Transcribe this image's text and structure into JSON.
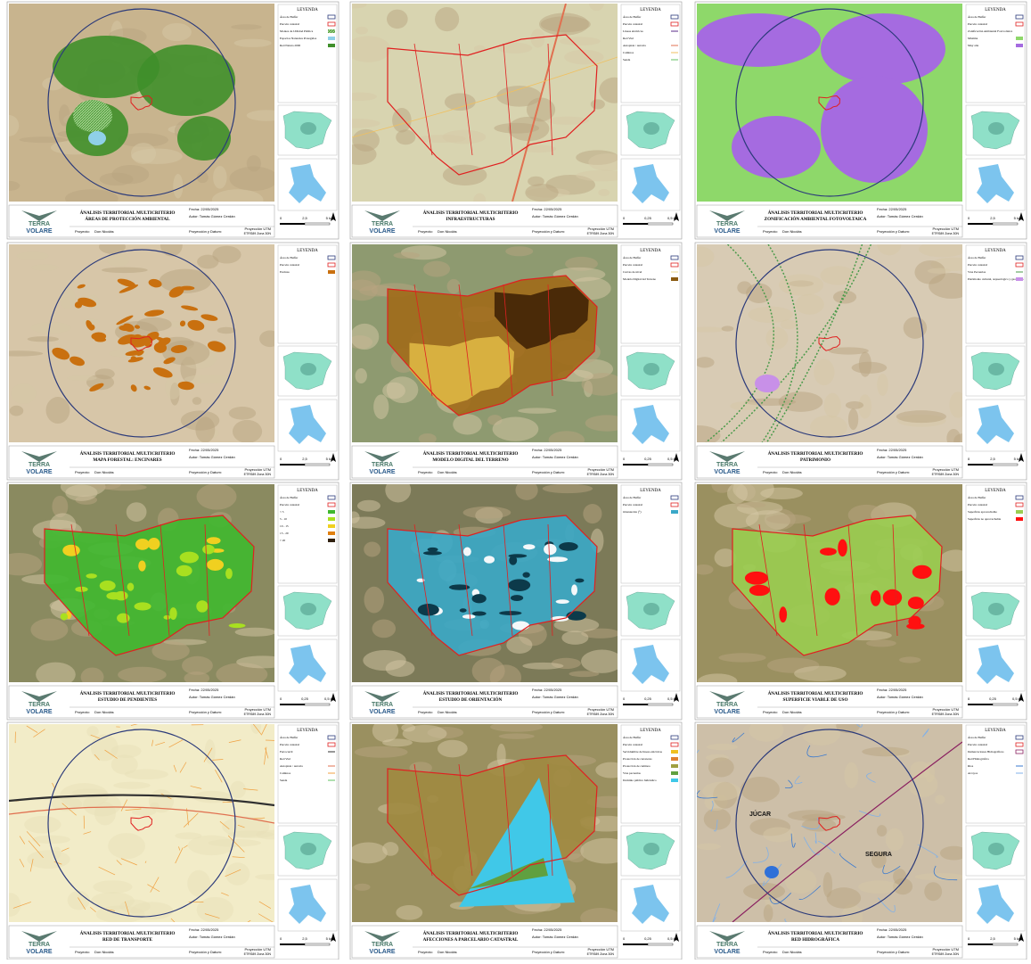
{
  "sheet": {
    "title": "ÁNALISIS TERRITORIAL MULTICRITERIO",
    "legend_heading": "LEYENDA",
    "date": "Fecha: 22/05/2025",
    "author": "Autor: Tomás Gómez Cerdán",
    "projection_label": "Proyección y Datum:",
    "projection_line1": "Proyección UTM",
    "projection_line2": "ETRS89 Zona 30N",
    "project_label": "Proyecto:",
    "project": "Don Nicolás",
    "logo_top": "TERRA",
    "logo_bottom": "VOLARE"
  },
  "panels": [
    {
      "subtitle": "ÁREAS DE PROTECCIÓN AMBIENTAL",
      "scale": [
        "0",
        "2,5",
        "5 km"
      ],
      "legend": [
        {
          "label": "Área de Buffer",
          "swatch": "outline",
          "color": "#2b3a7a"
        },
        {
          "label": "Parcela catastral",
          "swatch": "outline",
          "color": "#e02020"
        },
        {
          "label": "Montes de Utilidad Pública",
          "swatch": "hatch",
          "color": "#4fa83a"
        },
        {
          "label": "Espacios Naturales Protegidos",
          "swatch": "fill",
          "color": "#8fd0e8"
        },
        {
          "label": "Red Natura 2000",
          "swatch": "fill",
          "color": "#3f8f2a"
        }
      ]
    },
    {
      "subtitle": "INFRAESTRUCTURAS",
      "scale": [
        "0",
        "0,25",
        "0,5 km"
      ],
      "legend": [
        {
          "label": "Área de Buffer",
          "swatch": "outline",
          "color": "#2b3a7a"
        },
        {
          "label": "Parcela catastral",
          "swatch": "outline",
          "color": "#e02020"
        },
        {
          "label": "Líneas eléctricas",
          "swatch": "line",
          "color": "#5a2a8a"
        },
        {
          "label": "Red Vial",
          "swatch": "none",
          "color": "#000000"
        },
        {
          "label": "Autopista / autovía",
          "swatch": "line",
          "color": "#e07050"
        },
        {
          "label": "Caminos",
          "swatch": "line",
          "color": "#f0c060"
        },
        {
          "label": "Senda",
          "swatch": "line",
          "color": "#60c060"
        }
      ]
    },
    {
      "subtitle": "ZONIFICACIÓN AMBIENTAL FOTOVOLTAICA",
      "scale": [
        "0",
        "2,5",
        "5 km"
      ],
      "legend": [
        {
          "label": "Área de Buffer",
          "swatch": "outline",
          "color": "#2b3a7a"
        },
        {
          "label": "Parcela catastral",
          "swatch": "outline",
          "color": "#e02020"
        },
        {
          "label": "Zonificación Ambiental Fotovoltaica",
          "swatch": "none",
          "color": "#000000"
        },
        {
          "label": "Máxima",
          "swatch": "fill",
          "color": "#8ed86a"
        },
        {
          "label": "Muy alta",
          "swatch": "fill",
          "color": "#a56be0"
        }
      ]
    },
    {
      "subtitle": "MAPA FORESTAL: ENCINARES",
      "scale": [
        "0",
        "2,5",
        "5 km"
      ],
      "legend": [
        {
          "label": "Área de Buffer",
          "swatch": "outline",
          "color": "#2b3a7a"
        },
        {
          "label": "Parcela catastral",
          "swatch": "outline",
          "color": "#e02020"
        },
        {
          "label": "Encinas",
          "swatch": "fill",
          "color": "#c9700f"
        }
      ]
    },
    {
      "subtitle": "MODELO DIGITAL DEL TERRENO",
      "scale": [
        "0",
        "0,25",
        "0,5 km"
      ],
      "legend": [
        {
          "label": "Área de Buffer",
          "swatch": "outline",
          "color": "#2b3a7a"
        },
        {
          "label": "Parcela catastral",
          "swatch": "outline",
          "color": "#e02020"
        },
        {
          "label": "Curvas de nivel",
          "swatch": "line",
          "color": "#e8d890"
        },
        {
          "label": "Modelo Digital del Terreno",
          "swatch": "fill",
          "color": "#8a5a10"
        }
      ]
    },
    {
      "subtitle": "PATRIMONIO",
      "scale": [
        "0",
        "2,5",
        "5 km"
      ],
      "legend": [
        {
          "label": "Área de Buffer",
          "swatch": "outline",
          "color": "#2b3a7a"
        },
        {
          "label": "Parcela catastral",
          "swatch": "outline",
          "color": "#e02020"
        },
        {
          "label": "Vías Pecuarias",
          "swatch": "line",
          "color": "#4a9a4a"
        },
        {
          "label": "Patrimonio cultural, arqueológico y geológico",
          "swatch": "fill",
          "color": "#c890e8"
        }
      ]
    },
    {
      "subtitle": "ESTUDIO DE PENDIENTES",
      "scale": [
        "0",
        "0,25",
        "0,5 km"
      ],
      "legend": [
        {
          "label": "Área de Buffer",
          "swatch": "outline",
          "color": "#2b3a7a"
        },
        {
          "label": "Parcela catastral",
          "swatch": "outline",
          "color": "#e02020"
        },
        {
          "label": "< 5",
          "swatch": "fill",
          "color": "#3fb82f"
        },
        {
          "label": "5 - 10",
          "swatch": "fill",
          "color": "#a8e020"
        },
        {
          "label": "10 - 15",
          "swatch": "fill",
          "color": "#f0d020"
        },
        {
          "label": "15 - 20",
          "swatch": "fill",
          "color": "#e08010"
        },
        {
          "label": "> 20",
          "swatch": "fill",
          "color": "#302010"
        }
      ]
    },
    {
      "subtitle": "ESTUDIO DE ORIENTACIÓN",
      "scale": [
        "0",
        "0,25",
        "0,5 km"
      ],
      "legend": [
        {
          "label": "Área de Buffer",
          "swatch": "outline",
          "color": "#2b3a7a"
        },
        {
          "label": "Parcela catastral",
          "swatch": "outline",
          "color": "#e02020"
        },
        {
          "label": "Orientación (°)",
          "swatch": "fill",
          "color": "#3aa8c8"
        }
      ]
    },
    {
      "subtitle": "SUPERFICIE VIABLE DE USO",
      "scale": [
        "0",
        "0,25",
        "0,5 km"
      ],
      "legend": [
        {
          "label": "Área de Buffer",
          "swatch": "outline",
          "color": "#2b3a7a"
        },
        {
          "label": "Parcela catastral",
          "swatch": "outline",
          "color": "#e02020"
        },
        {
          "label": "Superficie aprovechable",
          "swatch": "fill",
          "color": "#9acd50"
        },
        {
          "label": "Superficie no aprovechable",
          "swatch": "fill",
          "color": "#ff1010"
        }
      ]
    },
    {
      "subtitle": "RED DE TRANSPORTE",
      "scale": [
        "0",
        "2,5",
        "5 km"
      ],
      "legend": [
        {
          "label": "Área de Buffer",
          "swatch": "outline",
          "color": "#2b3a7a"
        },
        {
          "label": "Parcela catastral",
          "swatch": "outline",
          "color": "#e02020"
        },
        {
          "label": "Ferrocarril",
          "swatch": "line",
          "color": "#303030"
        },
        {
          "label": "Red Vial",
          "swatch": "none",
          "color": "#000000"
        },
        {
          "label": "Autopista / autovía",
          "swatch": "line",
          "color": "#e07050"
        },
        {
          "label": "Caminos",
          "swatch": "line",
          "color": "#f0a040"
        },
        {
          "label": "Senda",
          "swatch": "line",
          "color": "#60c060"
        }
      ]
    },
    {
      "subtitle": "AFECCIONES A PARCELARIO CATASTRAL",
      "scale": [
        "0",
        "0,25",
        "0,5 km"
      ],
      "legend": [
        {
          "label": "Área de Buffer",
          "swatch": "outline",
          "color": "#2b3a7a"
        },
        {
          "label": "Parcela catastral",
          "swatch": "outline",
          "color": "#e02020"
        },
        {
          "label": "Servidumbre de líneas eléctricas",
          "swatch": "fill",
          "color": "#f0c020"
        },
        {
          "label": "Protección de carreteras",
          "swatch": "fill",
          "color": "#e08030"
        },
        {
          "label": "Protección de caminos",
          "swatch": "fill",
          "color": "#a0a040"
        },
        {
          "label": "Vías pecuarias",
          "swatch": "fill",
          "color": "#60a040"
        },
        {
          "label": "Dominio público hidráulico",
          "swatch": "fill",
          "color": "#40c8e8"
        }
      ]
    },
    {
      "subtitle": "RED HIDROGRÁFICA",
      "scale": [
        "0",
        "2,5",
        "5 km"
      ],
      "map_labels": [
        "JÚCAR",
        "SEGURA"
      ],
      "legend": [
        {
          "label": "Área de Buffer",
          "swatch": "outline",
          "color": "#2b3a7a"
        },
        {
          "label": "Parcela catastral",
          "swatch": "outline",
          "color": "#e02020"
        },
        {
          "label": "Demarcaciones Hidrográficas",
          "swatch": "outline",
          "color": "#8a2060"
        },
        {
          "label": "Red Hidrográfica",
          "swatch": "none",
          "color": "#000000"
        },
        {
          "label": "Ríos",
          "swatch": "line",
          "color": "#3a7ad0"
        },
        {
          "label": "Arroyos",
          "swatch": "line",
          "color": "#80b0e8"
        }
      ]
    }
  ]
}
